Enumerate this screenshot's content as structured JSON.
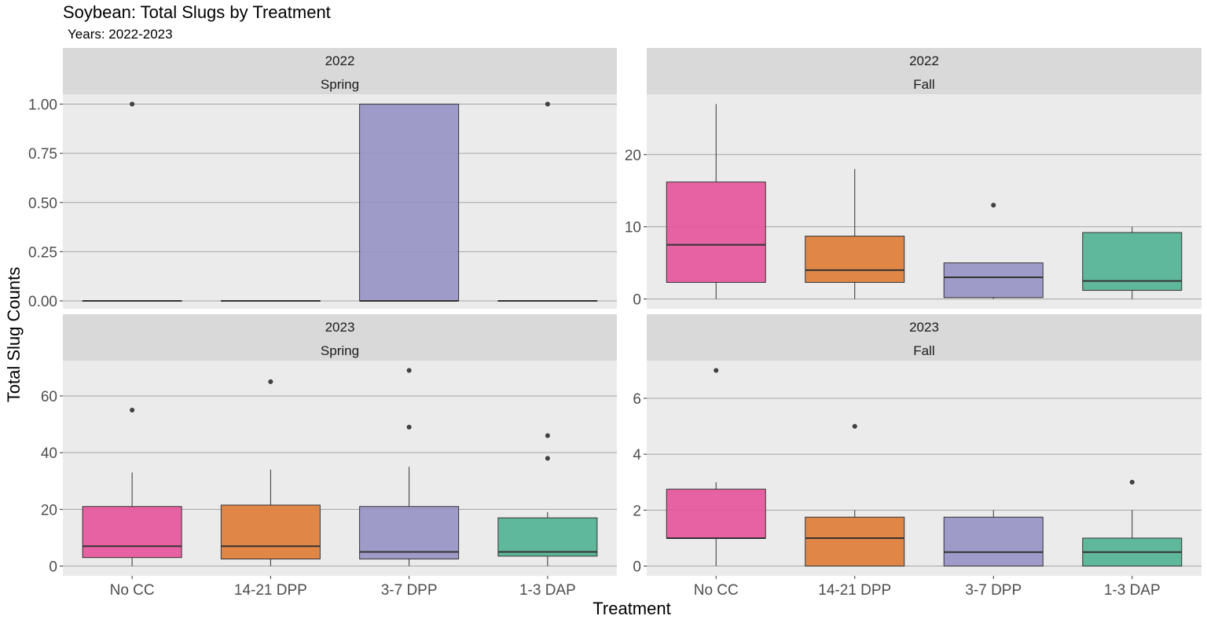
{
  "title": "Soybean: Total Slugs by Treatment",
  "subtitle": "Years: 2022-2023",
  "xlabel": "Treatment",
  "ylabel": "Total Slug Counts",
  "chart_data": {
    "type": "box",
    "title": "Soybean: Total Slugs by Treatment",
    "subtitle": "Years: 2022-2023",
    "xlabel": "Treatment",
    "ylabel": "Total Slug Counts",
    "categories": [
      "No CC",
      "14-21 DPP",
      "3-7 DPP",
      "1-3 DAP"
    ],
    "colors": [
      "#E7539A",
      "#DF7B35",
      "#9792C4",
      "#50B292"
    ],
    "grid": true,
    "legend": "none",
    "panels": [
      {
        "year": "2022",
        "season": "Spring",
        "ylim": [
          -0.04,
          1.05
        ],
        "yticks": [
          0,
          0.25,
          0.5,
          0.75,
          1.0
        ],
        "ytick_labels": [
          "0.00",
          "0.25",
          "0.50",
          "0.75",
          "1.00"
        ],
        "boxes": [
          {
            "category": "No CC",
            "min": 0,
            "q1": 0,
            "median": 0,
            "q3": 0,
            "max": 0,
            "outliers": [
              1
            ]
          },
          {
            "category": "14-21 DPP",
            "min": 0,
            "q1": 0,
            "median": 0,
            "q3": 0,
            "max": 0,
            "outliers": []
          },
          {
            "category": "3-7 DPP",
            "min": 0,
            "q1": 0,
            "median": 0,
            "q3": 1,
            "max": 1,
            "outliers": []
          },
          {
            "category": "1-3 DAP",
            "min": 0,
            "q1": 0,
            "median": 0,
            "q3": 0,
            "max": 0,
            "outliers": [
              1
            ]
          }
        ]
      },
      {
        "year": "2022",
        "season": "Fall",
        "ylim": [
          -1.35,
          28.35
        ],
        "yticks": [
          0,
          10,
          20
        ],
        "ytick_labels": [
          "0",
          "10",
          "20"
        ],
        "boxes": [
          {
            "category": "No CC",
            "min": 0,
            "q1": 2.3,
            "median": 7.5,
            "q3": 16.2,
            "max": 27,
            "outliers": []
          },
          {
            "category": "14-21 DPP",
            "min": 0,
            "q1": 2.3,
            "median": 4.0,
            "q3": 8.7,
            "max": 18,
            "outliers": []
          },
          {
            "category": "3-7 DPP",
            "min": 0,
            "q1": 0.2,
            "median": 3.0,
            "q3": 5.0,
            "max": 5,
            "outliers": [
              13
            ]
          },
          {
            "category": "1-3 DAP",
            "min": 0,
            "q1": 1.2,
            "median": 2.5,
            "q3": 9.2,
            "max": 10,
            "outliers": []
          }
        ]
      },
      {
        "year": "2023",
        "season": "Spring",
        "ylim": [
          -3.45,
          72.45
        ],
        "yticks": [
          0,
          20,
          40,
          60
        ],
        "ytick_labels": [
          "0",
          "20",
          "40",
          "60"
        ],
        "boxes": [
          {
            "category": "No CC",
            "min": 0,
            "q1": 3.0,
            "median": 7.0,
            "q3": 21.0,
            "max": 33,
            "outliers": [
              55
            ]
          },
          {
            "category": "14-21 DPP",
            "min": 0,
            "q1": 2.5,
            "median": 7.0,
            "q3": 21.5,
            "max": 34,
            "outliers": [
              65
            ]
          },
          {
            "category": "3-7 DPP",
            "min": 0,
            "q1": 2.5,
            "median": 5.0,
            "q3": 21.0,
            "max": 35,
            "outliers": [
              49,
              69
            ]
          },
          {
            "category": "1-3 DAP",
            "min": 0,
            "q1": 3.5,
            "median": 5.0,
            "q3": 17.0,
            "max": 19,
            "outliers": [
              38,
              46
            ]
          }
        ]
      },
      {
        "year": "2023",
        "season": "Fall",
        "ylim": [
          -0.35,
          7.35
        ],
        "yticks": [
          0,
          2,
          4,
          6
        ],
        "ytick_labels": [
          "0",
          "2",
          "4",
          "6"
        ],
        "boxes": [
          {
            "category": "No CC",
            "min": 0,
            "q1": 1.0,
            "median": 1.0,
            "q3": 2.75,
            "max": 3,
            "outliers": [
              7
            ]
          },
          {
            "category": "14-21 DPP",
            "min": 0,
            "q1": 0,
            "median": 1.0,
            "q3": 1.75,
            "max": 2,
            "outliers": [
              5
            ]
          },
          {
            "category": "3-7 DPP",
            "min": 0,
            "q1": 0,
            "median": 0.5,
            "q3": 1.75,
            "max": 2,
            "outliers": []
          },
          {
            "category": "1-3 DAP",
            "min": 0,
            "q1": 0,
            "median": 0.5,
            "q3": 1.0,
            "max": 2,
            "outliers": [
              3
            ]
          }
        ]
      }
    ]
  }
}
